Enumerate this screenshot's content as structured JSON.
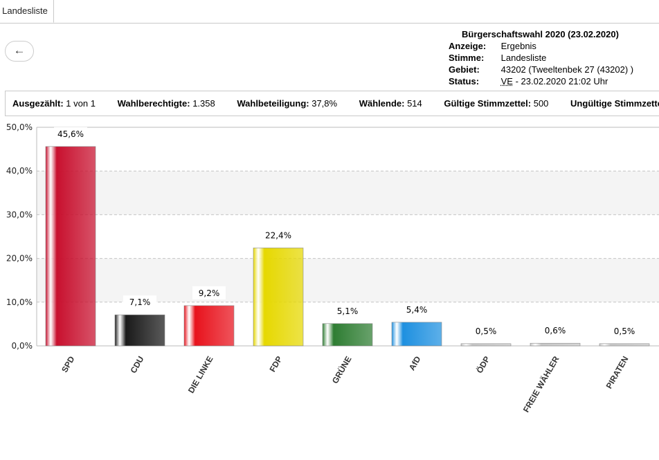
{
  "tab": {
    "label": "Landesliste"
  },
  "back_button": {
    "label": "←"
  },
  "info": {
    "title": "Bürgerschaftswahl 2020 (23.02.2020)",
    "rows": [
      {
        "key": "Anzeige:",
        "value": "Ergebnis"
      },
      {
        "key": "Stimme:",
        "value": "Landesliste"
      },
      {
        "key": "Gebiet:",
        "value": "43202 (Tweeltenbek 27 (43202) )"
      }
    ],
    "status_key": "Status:",
    "status_abbr": "VE",
    "status_rest": " - 23.02.2020 21:02 Uhr"
  },
  "stats": [
    {
      "label": "Ausgezählt:",
      "value": "1 von 1"
    },
    {
      "label": "Wahlberechtigte:",
      "value": "1.358"
    },
    {
      "label": "Wahlbeteiligung:",
      "value": "37,8%"
    },
    {
      "label": "Wählende:",
      "value": "514"
    },
    {
      "label": "Gültige Stimmzettel:",
      "value": "500"
    },
    {
      "label": "Ungültige Stimmzettel",
      "value": ""
    }
  ],
  "chart_data": {
    "type": "bar",
    "categories": [
      "SPD",
      "CDU",
      "DIE LINKE",
      "FDP",
      "GRÜNE",
      "AfD",
      "ÖDP",
      "FREIE WÄHLER",
      "PIRATEN"
    ],
    "values": [
      45.6,
      7.1,
      9.2,
      22.4,
      5.1,
      5.4,
      0.5,
      0.6,
      0.5
    ],
    "value_labels": [
      "45,6%",
      "7,1%",
      "9,2%",
      "22,4%",
      "5,1%",
      "5,4%",
      "0,5%",
      "0,6%",
      "0,5%"
    ],
    "colors": [
      "#c8102e",
      "#1a1a1a",
      "#e8121c",
      "#e6d800",
      "#2e7d32",
      "#1e90e0",
      "#c8c8c8",
      "#c8c8c8",
      "#c8c8c8"
    ],
    "yticks": [
      "0,0%",
      "10,0%",
      "20,0%",
      "30,0%",
      "40,0%",
      "50,0%"
    ],
    "ylim": [
      0,
      50
    ],
    "grid": true
  }
}
